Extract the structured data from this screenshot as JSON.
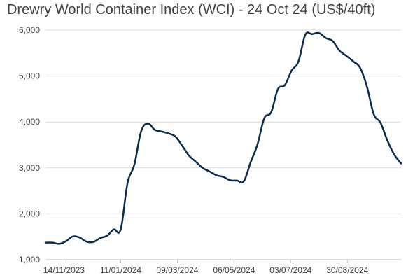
{
  "chart_data": {
    "type": "line",
    "title": "Drewry World Container Index (WCI) - 24 Oct 24 (US$/40ft)",
    "xlabel": "",
    "ylabel": "",
    "ylim": [
      1000,
      6000
    ],
    "xlim": [
      "2023-10-26",
      "2024-10-24"
    ],
    "grid": true,
    "legend": "none",
    "y_ticks": [
      1000,
      2000,
      3000,
      4000,
      5000,
      6000
    ],
    "y_tick_labels": [
      "1,000",
      "2,000",
      "3,000",
      "4,000",
      "5,000",
      "6,000"
    ],
    "x_ticks": [
      "2023-11-14",
      "2024-01-11",
      "2024-03-09",
      "2024-05-06",
      "2024-07-03",
      "2024-08-30"
    ],
    "x_tick_labels": [
      "14/11/2023",
      "11/01/2024",
      "09/03/2024",
      "06/05/2024",
      "03/07/2024",
      "30/08/2024"
    ],
    "series": [
      {
        "color": "#0b2a4a",
        "x": [
          "2023-10-26",
          "2023-11-02",
          "2023-11-09",
          "2023-11-16",
          "2023-11-23",
          "2023-11-30",
          "2023-12-07",
          "2023-12-14",
          "2023-12-21",
          "2023-12-28",
          "2024-01-04",
          "2024-01-11",
          "2024-01-18",
          "2024-01-25",
          "2024-02-01",
          "2024-02-08",
          "2024-02-15",
          "2024-02-22",
          "2024-02-29",
          "2024-03-07",
          "2024-03-14",
          "2024-03-21",
          "2024-03-28",
          "2024-04-04",
          "2024-04-11",
          "2024-04-18",
          "2024-04-25",
          "2024-05-02",
          "2024-05-09",
          "2024-05-16",
          "2024-05-23",
          "2024-05-30",
          "2024-06-06",
          "2024-06-13",
          "2024-06-20",
          "2024-06-27",
          "2024-07-04",
          "2024-07-11",
          "2024-07-18",
          "2024-07-25",
          "2024-08-01",
          "2024-08-08",
          "2024-08-15",
          "2024-08-22",
          "2024-08-29",
          "2024-09-05",
          "2024-09-12",
          "2024-09-19",
          "2024-09-26",
          "2024-10-03",
          "2024-10-10",
          "2024-10-17",
          "2024-10-24"
        ],
        "values": [
          1371,
          1371,
          1345,
          1402,
          1506,
          1482,
          1394,
          1386,
          1471,
          1521,
          1661,
          1659,
          2670,
          3072,
          3800,
          3964,
          3828,
          3793,
          3750,
          3682,
          3482,
          3266,
          3134,
          2998,
          2922,
          2840,
          2806,
          2730,
          2724,
          2707,
          3122,
          3510,
          4081,
          4212,
          4716,
          4800,
          5117,
          5319,
          5900,
          5912,
          5936,
          5826,
          5762,
          5551,
          5439,
          5319,
          5181,
          4775,
          4172,
          3982,
          3597,
          3290,
          3097
        ]
      }
    ]
  }
}
